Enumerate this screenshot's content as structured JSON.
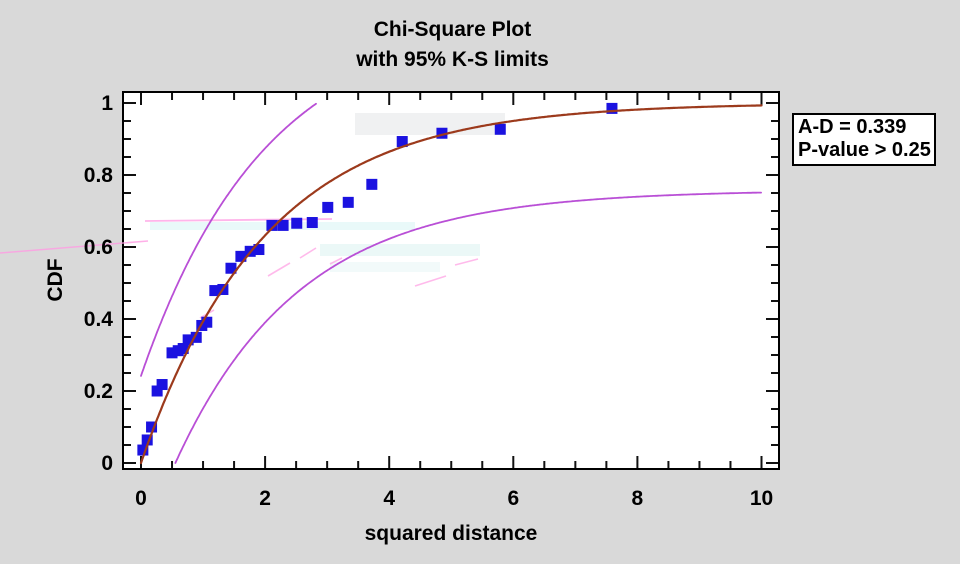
{
  "window": {
    "background_color": "#d9d9d9",
    "plot_background_color": "#ffffff"
  },
  "title": "Chi-Square Plot",
  "subtitle": "with 95% K-S limits",
  "stats_box": {
    "line1": "A-D = 0.339",
    "line2": "P-value > 0.25"
  },
  "chart_data": {
    "type": "scatter",
    "title": "Chi-Square Plot",
    "subtitle": "with 95% K-S limits",
    "xlabel": "squared distance",
    "ylabel": "CDF",
    "xlim": [
      0,
      10
    ],
    "ylim": [
      0,
      1
    ],
    "x_tick_values": [
      0,
      2,
      4,
      6,
      8,
      10
    ],
    "x_tick_labels": [
      "0",
      "2",
      "4",
      "6",
      "8",
      "10"
    ],
    "x_minor_step": 0.5,
    "y_tick_values": [
      0,
      0.2,
      0.4,
      0.6,
      0.8,
      1
    ],
    "y_tick_labels": [
      "0",
      "0.2",
      "0.4",
      "0.6",
      "0.8",
      "1"
    ],
    "y_minor_step": 0.05,
    "grid": false,
    "legend": "none",
    "points": [
      [
        0.03,
        0.036
      ],
      [
        0.1,
        0.064
      ],
      [
        0.17,
        0.1
      ],
      [
        0.26,
        0.2
      ],
      [
        0.34,
        0.218
      ],
      [
        0.5,
        0.306
      ],
      [
        0.6,
        0.312
      ],
      [
        0.68,
        0.318
      ],
      [
        0.76,
        0.342
      ],
      [
        0.89,
        0.349
      ],
      [
        0.98,
        0.382
      ],
      [
        1.06,
        0.391
      ],
      [
        1.19,
        0.479
      ],
      [
        1.32,
        0.482
      ],
      [
        1.45,
        0.541
      ],
      [
        1.61,
        0.574
      ],
      [
        1.76,
        0.588
      ],
      [
        1.9,
        0.593
      ],
      [
        2.11,
        0.66
      ],
      [
        2.29,
        0.66
      ],
      [
        2.51,
        0.666
      ],
      [
        2.76,
        0.668
      ],
      [
        3.01,
        0.71
      ],
      [
        3.34,
        0.724
      ],
      [
        3.72,
        0.774
      ],
      [
        4.21,
        0.893
      ],
      [
        4.85,
        0.916
      ],
      [
        5.79,
        0.927
      ],
      [
        7.59,
        0.985
      ]
    ],
    "point_color": "#1b12e0",
    "fit_curve": {
      "description": "chi-square (2 df) / exponential CDF fit: F(x) = 1 - exp(-x/theta)",
      "theta": 2,
      "color": "#9c3a1c"
    },
    "ks_limits": {
      "description": "95% Kolmogorov-Smirnov band: F(x) +/- delta, clipped to [0,1]",
      "delta": 0.242,
      "confidence": "95%",
      "color": "#b94fd6"
    }
  }
}
